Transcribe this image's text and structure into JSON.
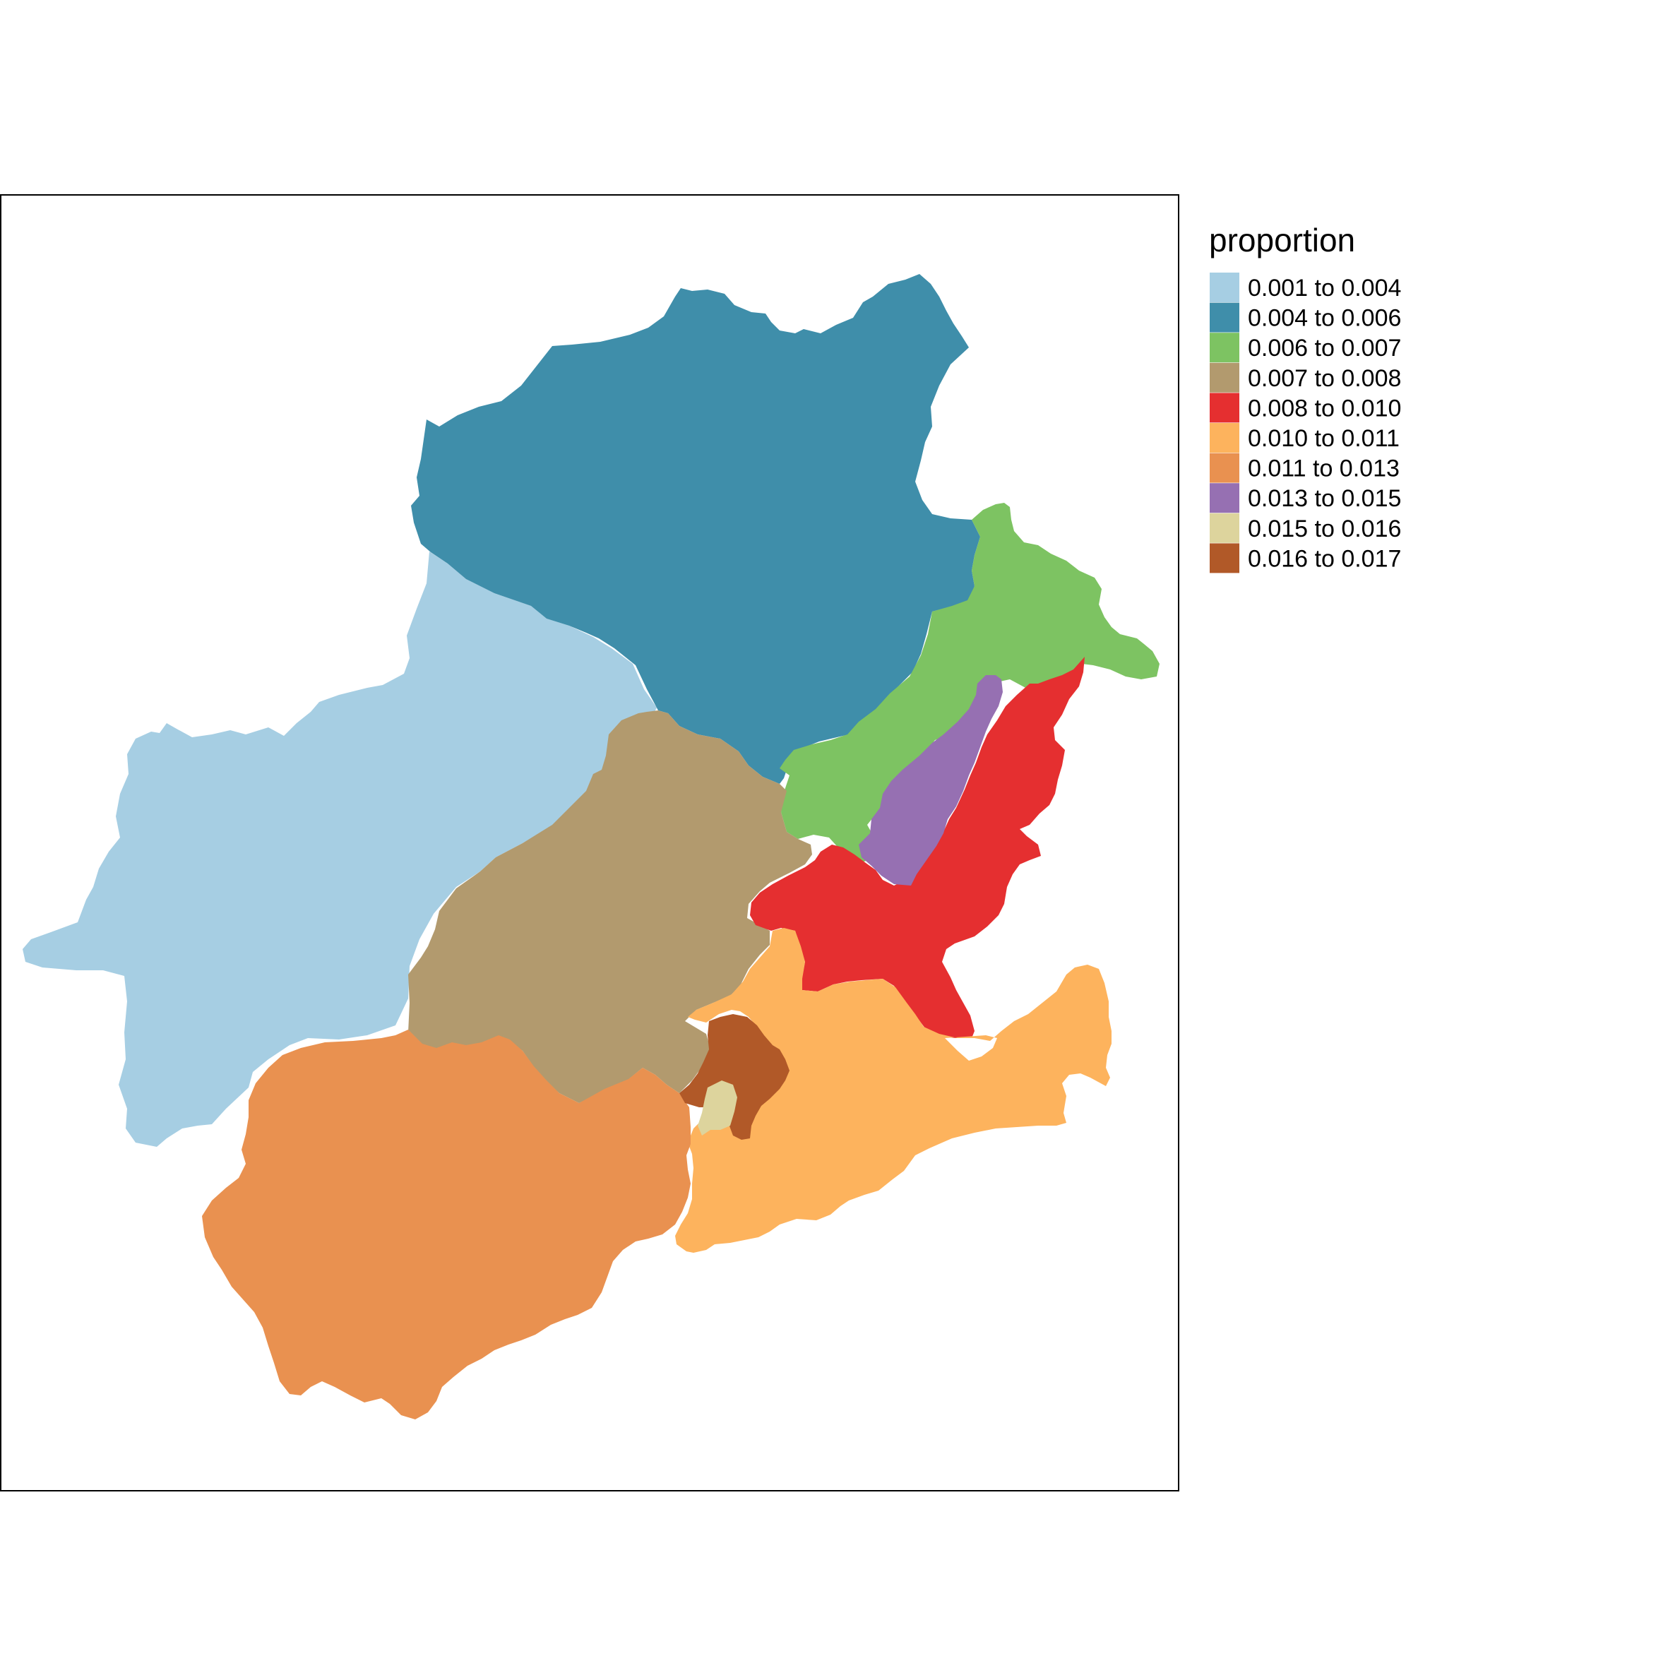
{
  "legend": {
    "title": "proportion",
    "entries": [
      {
        "label": "0.001 to 0.004",
        "color": "#A6CEE3"
      },
      {
        "label": "0.004 to 0.006",
        "color": "#3F8EAA"
      },
      {
        "label": "0.006 to 0.007",
        "color": "#7DC362"
      },
      {
        "label": "0.007 to 0.008",
        "color": "#B29A6E"
      },
      {
        "label": "0.008 to 0.010",
        "color": "#E52F30"
      },
      {
        "label": "0.010 to 0.011",
        "color": "#FDB35D"
      },
      {
        "label": "0.011 to 0.013",
        "color": "#E99150"
      },
      {
        "label": "0.013 to 0.015",
        "color": "#9670B2"
      },
      {
        "label": "0.015 to 0.016",
        "color": "#DDD49D"
      },
      {
        "label": "0.016 to 0.017",
        "color": "#B15928"
      }
    ]
  },
  "regions": [
    {
      "class_index": 0
    },
    {
      "class_index": 1
    },
    {
      "class_index": 2
    },
    {
      "class_index": 3
    },
    {
      "class_index": 4
    },
    {
      "class_index": 5
    },
    {
      "class_index": 6
    },
    {
      "class_index": 7
    },
    {
      "class_index": 8
    },
    {
      "class_index": 9
    }
  ]
}
